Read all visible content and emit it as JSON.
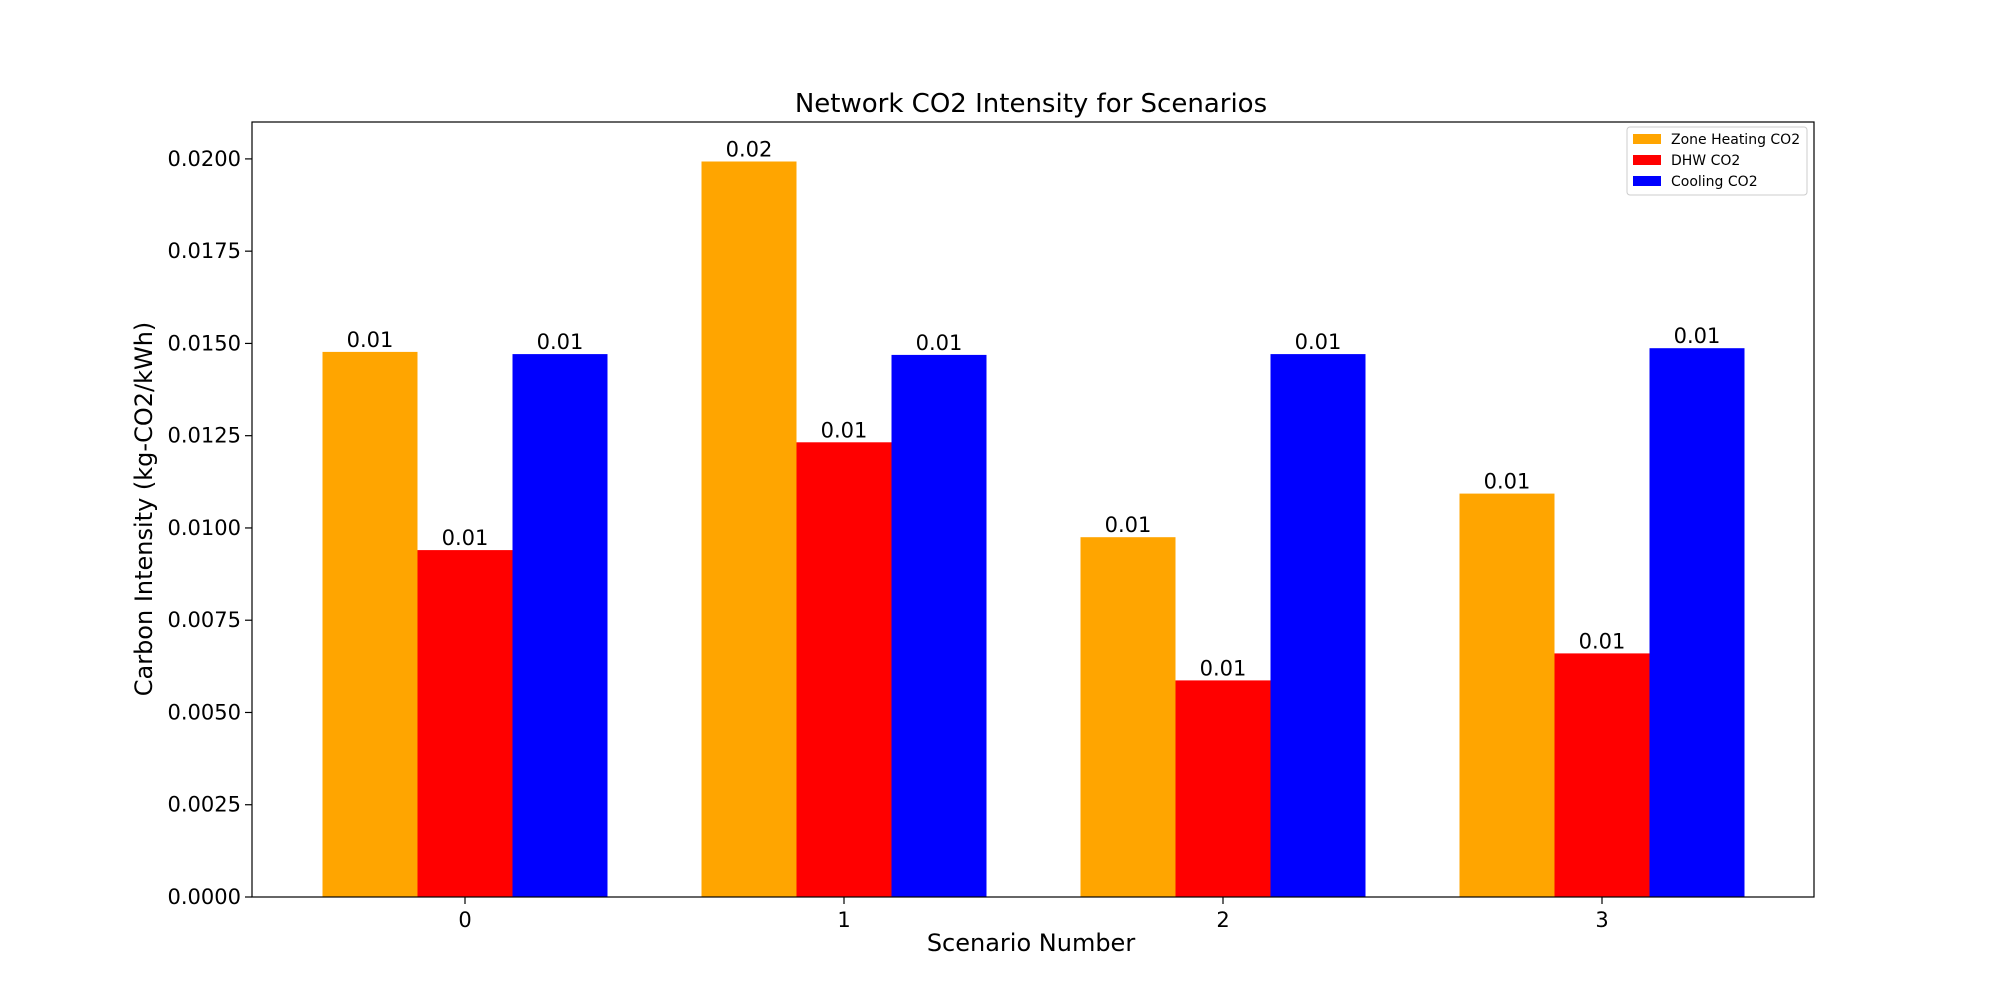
{
  "chart_data": {
    "type": "bar",
    "title": "Network CO2 Intensity for Scenarios",
    "xlabel": "Scenario Number",
    "ylabel": "Carbon Intensity (kg-CO2/kWh)",
    "categories": [
      "0",
      "1",
      "2",
      "3"
    ],
    "ylim": [
      0,
      0.021
    ],
    "yticks": [
      0.0,
      0.0025,
      0.005,
      0.0075,
      0.01,
      0.0125,
      0.015,
      0.0175,
      0.02
    ],
    "ytick_labels": [
      "0.0000",
      "0.0025",
      "0.0050",
      "0.0075",
      "0.0100",
      "0.0125",
      "0.0150",
      "0.0175",
      "0.0200"
    ],
    "grid": false,
    "legend_position": "top-right",
    "series": [
      {
        "name": "Zone Heating CO2",
        "color": "#FFA500",
        "values": [
          0.01477,
          0.01993,
          0.00975,
          0.01093
        ],
        "labels": [
          "0.01",
          "0.02",
          "0.01",
          "0.01"
        ]
      },
      {
        "name": "DHW CO2",
        "color": "#FF0000",
        "values": [
          0.0094,
          0.01232,
          0.00587,
          0.0066
        ],
        "labels": [
          "0.01",
          "0.01",
          "0.01",
          "0.01"
        ]
      },
      {
        "name": "Cooling CO2",
        "color": "#0000FF",
        "values": [
          0.01471,
          0.01469,
          0.01471,
          0.01487
        ],
        "labels": [
          "0.01",
          "0.01",
          "0.01",
          "0.01"
        ]
      }
    ]
  }
}
